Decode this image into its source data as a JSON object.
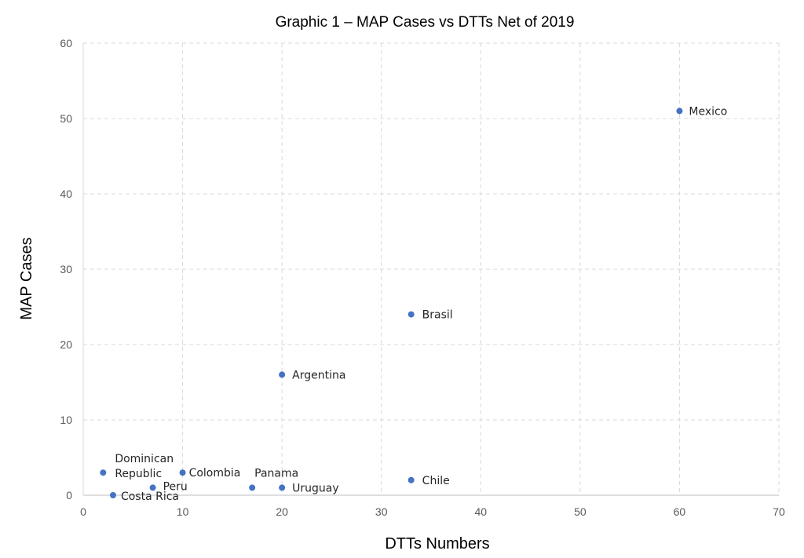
{
  "chart_data": {
    "type": "scatter",
    "title": "Graphic 1 – MAP Cases vs DTTs Net of 2019",
    "xlabel": "DTTs Numbers",
    "ylabel": "MAP Cases",
    "xlim": [
      0,
      70
    ],
    "ylim": [
      0,
      60
    ],
    "xticks": [
      0,
      10,
      20,
      30,
      40,
      50,
      60,
      70
    ],
    "yticks": [
      0,
      10,
      20,
      30,
      40,
      50,
      60
    ],
    "grid": true,
    "grid_style": "dashed",
    "marker_color": "#4472C4",
    "points": [
      {
        "label": "Mexico",
        "x": 60,
        "y": 51
      },
      {
        "label": "Brasil",
        "x": 33,
        "y": 24
      },
      {
        "label": "Argentina",
        "x": 20,
        "y": 16
      },
      {
        "label": "Dominican Republic",
        "x": 2,
        "y": 3
      },
      {
        "label": "Colombia",
        "x": 10,
        "y": 3
      },
      {
        "label": "Panama",
        "x": 17,
        "y": 1
      },
      {
        "label": "Uruguay",
        "x": 20,
        "y": 1
      },
      {
        "label": "Chile",
        "x": 33,
        "y": 2
      },
      {
        "label": "Peru",
        "x": 7,
        "y": 1
      },
      {
        "label": "Costa Rica",
        "x": 3,
        "y": 0
      }
    ]
  }
}
